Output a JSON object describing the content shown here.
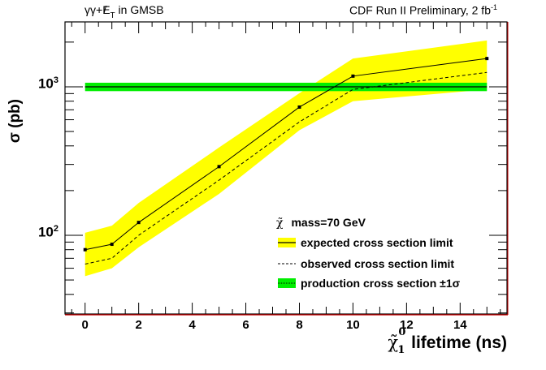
{
  "chart_data": {
    "type": "line",
    "title_left": "γγ+E̸T in GMSB",
    "title_left_parts": {
      "main": "γγ+",
      "met": "E",
      "met_sub": "T",
      "suffix": " in GMSB"
    },
    "title_right": {
      "main": "CDF Run II Preliminary, 2 fb",
      "sup": "-1"
    },
    "xlabel": {
      "symbol": "χ̃",
      "sup": "0",
      "sub": "1",
      "text": "lifetime (ns)"
    },
    "ylabel": "σ (pb)",
    "xlim": [
      -0.75,
      15.75
    ],
    "ylim": [
      29.5,
      2735
    ],
    "yscale": "log",
    "x_ticks": [
      {
        "value": 0,
        "label": "0"
      },
      {
        "value": 2,
        "label": "2"
      },
      {
        "value": 4,
        "label": "4"
      },
      {
        "value": 6,
        "label": "6"
      },
      {
        "value": 8,
        "label": "8"
      },
      {
        "value": 10,
        "label": "10"
      },
      {
        "value": 12,
        "label": "12"
      },
      {
        "value": 14,
        "label": "14"
      }
    ],
    "y_ticks": [
      {
        "value": 100,
        "base": "10",
        "exp": "2"
      },
      {
        "value": 1000,
        "base": "10",
        "exp": "3"
      }
    ],
    "x": [
      0,
      1,
      2,
      5,
      8,
      10,
      15
    ],
    "series": [
      {
        "name": "expected cross section limit",
        "style": "solid-with-markers",
        "color": "#000000",
        "values": [
          80,
          87,
          122,
          290,
          730,
          1180,
          1550
        ]
      },
      {
        "name": "expected ±1σ band",
        "style": "band",
        "color": "#ffff00",
        "upper": [
          104,
          116,
          165,
          390,
          905,
          1550,
          2050
        ],
        "lower": [
          53,
          60,
          83,
          190,
          510,
          800,
          960
        ]
      },
      {
        "name": "observed cross section limit",
        "style": "dashed",
        "color": "#000000",
        "values": [
          64,
          70,
          100,
          235,
          580,
          960,
          1250
        ]
      },
      {
        "name": "production cross section ±1σ",
        "style": "band-with-center",
        "color": "#00ee00",
        "center": 1000,
        "upper": 1065,
        "lower": 935,
        "x_range": [
          0,
          15
        ]
      }
    ],
    "legend": {
      "placement": "bottom-right",
      "header": {
        "symbol": "χ̃",
        "text": "mass=70 GeV"
      },
      "entries": [
        {
          "label": "expected cross section limit",
          "swatch": "yellow-with-solid-line",
          "fill": "#ffff00"
        },
        {
          "label": "observed cross section limit",
          "swatch": "dashed-line",
          "fill": "none"
        },
        {
          "label": "production cross section ±1σ",
          "swatch": "green-with-dotted-line",
          "fill": "#00ee00"
        }
      ]
    },
    "colors": {
      "frame": "#000000",
      "frame_accent": "#cc0000"
    }
  }
}
